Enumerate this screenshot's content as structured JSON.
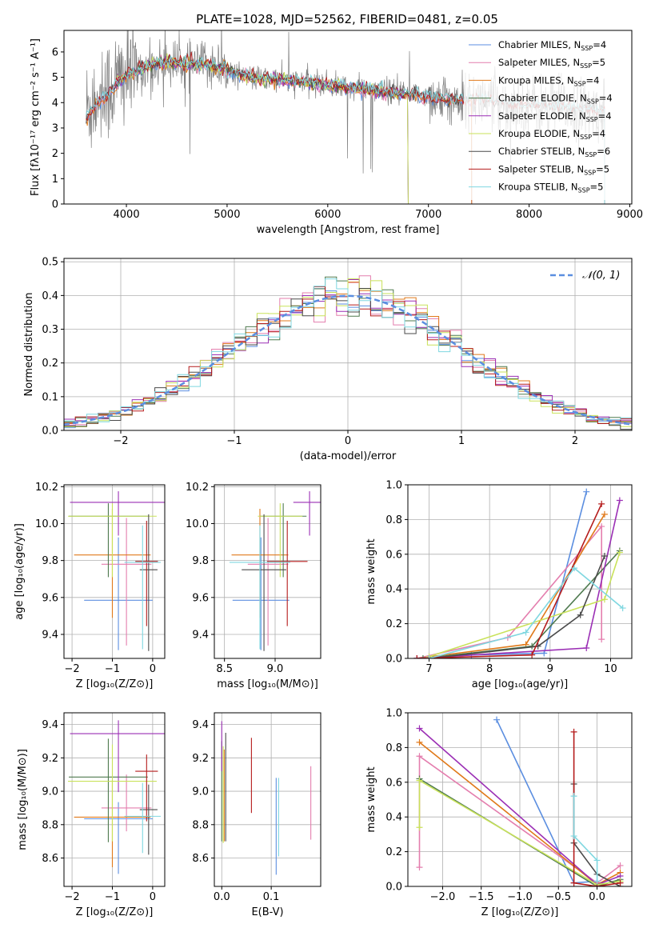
{
  "colors": {
    "Chabrier MILES": "#5b8ee0",
    "Salpeter MILES": "#e47eae",
    "Kroupa MILES": "#e07a1b",
    "Chabrier ELODIE": "#4f7a4f",
    "Salpeter ELODIE": "#9b2fb5",
    "Kroupa ELODIE": "#c9e25a",
    "Chabrier STELIB": "#4a4a4a",
    "Salpeter STELIB": "#b51c1c",
    "Kroupa STELIB": "#7fd7e0",
    "observed": "#808080"
  },
  "chart_data": [
    {
      "id": "spectrum",
      "type": "line",
      "title": "PLATE=1028, MJD=52562, FIBERID=0481, z=0.05",
      "xlabel": "wavelength [Angstrom, rest frame]",
      "ylabel": "Flux [fλ10⁻¹⁷ erg cm⁻² s⁻¹ A⁻¹]",
      "xlim": [
        3380,
        9020
      ],
      "ylim": [
        0,
        6.85
      ],
      "xticks": [
        "4000",
        "5000",
        "6000",
        "7000",
        "8000",
        "9000"
      ],
      "yticks": [
        "0",
        "1",
        "2",
        "3",
        "4",
        "5",
        "6"
      ],
      "legend": [
        "Chabrier MILES, N_SSP=4",
        "Salpeter MILES, N_SSP=5",
        "Kroupa MILES, N_SSP=4",
        "Chabrier ELODIE, N_SSP=4",
        "Salpeter ELODIE, N_SSP=4",
        "Kroupa ELODIE, N_SSP=4",
        "Chabrier STELIB, N_SSP=6",
        "Salpeter STELIB, N_SSP=5",
        "Kroupa STELIB, N_SSP=5"
      ],
      "legend_position": "top-right",
      "continuum": [
        [
          3600,
          3.7
        ],
        [
          3700,
          4.2
        ],
        [
          3800,
          4.4
        ],
        [
          3900,
          4.8
        ],
        [
          4000,
          5.1
        ],
        [
          4200,
          5.4
        ],
        [
          4400,
          5.6
        ],
        [
          4600,
          5.5
        ],
        [
          4800,
          5.5
        ],
        [
          5000,
          5.3
        ],
        [
          5200,
          5.0
        ],
        [
          5500,
          4.9
        ],
        [
          5800,
          4.8
        ],
        [
          6000,
          4.7
        ],
        [
          6300,
          4.55
        ],
        [
          6600,
          4.4
        ],
        [
          6900,
          4.3
        ],
        [
          7200,
          4.1
        ],
        [
          7500,
          4.1
        ],
        [
          7800,
          3.95
        ],
        [
          8100,
          3.85
        ],
        [
          8400,
          3.8
        ],
        [
          8700,
          3.65
        ]
      ],
      "model_ranges": {
        "MILES": [
          3600,
          7430
        ],
        "ELODIE": [
          3900,
          6800
        ],
        "STELIB": [
          3600,
          8750
        ]
      },
      "grid": false
    },
    {
      "id": "residuals",
      "type": "histogram",
      "xlabel": "(data-model)/error",
      "ylabel": "Normed distribution",
      "xlim": [
        -2.5,
        2.5
      ],
      "ylim": [
        0,
        0.51
      ],
      "xticks": [
        "−2",
        "−1",
        "0",
        "1",
        "2"
      ],
      "yticks": [
        "0.0",
        "0.1",
        "0.2",
        "0.3",
        "0.4",
        "0.5"
      ],
      "reference_label": "𝒩(0, 1)",
      "bin_width": 0.1,
      "grid": true
    },
    {
      "id": "age_vs_Z",
      "type": "errorbar",
      "xlabel": "Z [log₁₀(Z/Z⊙)]",
      "ylabel": "age  [log₁₀(age/yr)]",
      "xlim": [
        -2.2,
        0.3
      ],
      "ylim": [
        9.27,
        10.21
      ],
      "xticks": [
        "−2",
        "−1",
        "0"
      ],
      "yticks": [
        "9.4",
        "9.6",
        "9.8",
        "10.0",
        "10.2"
      ],
      "points": [
        {
          "model": "Chabrier MILES",
          "x": -0.85,
          "y": 9.585,
          "xerr": 0.85,
          "yerr": [
            0.27,
            0.34
          ]
        },
        {
          "model": "Salpeter MILES",
          "x": -0.65,
          "y": 9.78,
          "xerr": 0.62,
          "yerr": [
            0.44,
            0.25
          ]
        },
        {
          "model": "Kroupa MILES",
          "x": -1.0,
          "y": 9.83,
          "xerr": 0.95,
          "yerr": [
            0.34,
            0.25
          ]
        },
        {
          "model": "Chabrier ELODIE",
          "x": -1.1,
          "y": 10.04,
          "xerr": 0.98,
          "yerr": [
            0.33,
            0.07
          ]
        },
        {
          "model": "Salpeter ELODIE",
          "x": -0.85,
          "y": 10.115,
          "xerr": 1.2,
          "yerr": [
            0.18,
            0.06
          ]
        },
        {
          "model": "Kroupa ELODIE",
          "x": -1.0,
          "y": 10.04,
          "xerr": 1.1,
          "yerr": [
            0.33,
            0.07
          ]
        },
        {
          "model": "Chabrier STELIB",
          "x": -0.1,
          "y": 9.75,
          "xerr": 0.22,
          "yerr": [
            0.44,
            0.3
          ]
        },
        {
          "model": "Salpeter STELIB",
          "x": -0.15,
          "y": 9.795,
          "xerr": 0.28,
          "yerr": [
            0.35,
            0.22
          ]
        },
        {
          "model": "Kroupa STELIB",
          "x": -0.25,
          "y": 9.79,
          "xerr": 0.45,
          "yerr": [
            0.47,
            0.2
          ]
        }
      ],
      "grid": true
    },
    {
      "id": "age_vs_mass",
      "type": "errorbar",
      "xlabel": "mass [log₁₀(M/M⊙)]",
      "ylabel": "",
      "xlim": [
        8.4,
        9.45
      ],
      "ylim": [
        9.27,
        10.21
      ],
      "xticks": [
        "8.5",
        "9.0"
      ],
      "yticks": [
        "9.4",
        "9.6",
        "9.8",
        "10.0",
        "10.2"
      ],
      "points": [
        {
          "model": "Chabrier MILES",
          "x": 8.86,
          "y": 9.585,
          "xerr": 0.28,
          "yerr": [
            0.27,
            0.34
          ]
        },
        {
          "model": "Salpeter MILES",
          "x": 8.93,
          "y": 9.78,
          "xerr": 0.2,
          "yerr": [
            0.44,
            0.25
          ]
        },
        {
          "model": "Kroupa MILES",
          "x": 8.85,
          "y": 9.83,
          "xerr": 0.28,
          "yerr": [
            0.34,
            0.25
          ]
        },
        {
          "model": "Chabrier ELODIE",
          "x": 9.08,
          "y": 10.04,
          "xerr": 0.23,
          "yerr": [
            0.33,
            0.07
          ]
        },
        {
          "model": "Salpeter ELODIE",
          "x": 9.34,
          "y": 10.115,
          "xerr": 0.16,
          "yerr": [
            0.18,
            0.06
          ]
        },
        {
          "model": "Kroupa ELODIE",
          "x": 9.05,
          "y": 10.04,
          "xerr": 0.22,
          "yerr": [
            0.33,
            0.07
          ]
        },
        {
          "model": "Chabrier STELIB",
          "x": 8.89,
          "y": 9.75,
          "xerr": 0.22,
          "yerr": [
            0.44,
            0.3
          ]
        },
        {
          "model": "Salpeter STELIB",
          "x": 9.12,
          "y": 9.795,
          "xerr": 0.2,
          "yerr": [
            0.35,
            0.22
          ]
        },
        {
          "model": "Kroupa STELIB",
          "x": 8.85,
          "y": 9.79,
          "xerr": 0.3,
          "yerr": [
            0.47,
            0.2
          ]
        }
      ],
      "grid": true
    },
    {
      "id": "weight_vs_age",
      "type": "line",
      "xlabel": "age  [log₁₀(age/yr)]",
      "ylabel": "mass weight",
      "xlim": [
        6.65,
        10.35
      ],
      "ylim": [
        0,
        1.0
      ],
      "xticks": [
        "7",
        "8",
        "9",
        "10"
      ],
      "yticks": [
        "0.0",
        "0.2",
        "0.4",
        "0.6",
        "0.8",
        "1.0"
      ],
      "series": [
        {
          "model": "Chabrier MILES",
          "points": [
            [
              6.8,
              0.0
            ],
            [
              7.7,
              0.02
            ],
            [
              8.9,
              0.03
            ],
            [
              9.6,
              0.96
            ]
          ]
        },
        {
          "model": "Salpeter MILES",
          "points": [
            [
              6.8,
              0.0
            ],
            [
              8.3,
              0.12
            ],
            [
              9.85,
              0.76
            ],
            [
              9.85,
              0.11
            ]
          ]
        },
        {
          "model": "Kroupa MILES",
          "points": [
            [
              6.8,
              0.0
            ],
            [
              8.6,
              0.08
            ],
            [
              9.9,
              0.83
            ]
          ]
        },
        {
          "model": "Chabrier ELODIE",
          "points": [
            [
              6.9,
              0.0
            ],
            [
              8.7,
              0.07
            ],
            [
              10.15,
              0.62
            ]
          ]
        },
        {
          "model": "Salpeter ELODIE",
          "points": [
            [
              6.8,
              0.0
            ],
            [
              9.6,
              0.06
            ],
            [
              10.15,
              0.91
            ]
          ]
        },
        {
          "model": "Kroupa ELODIE",
          "points": [
            [
              7.0,
              0.01
            ],
            [
              9.9,
              0.34
            ],
            [
              10.15,
              0.61
            ]
          ]
        },
        {
          "model": "Chabrier STELIB",
          "points": [
            [
              7.0,
              0.0
            ],
            [
              8.8,
              0.07
            ],
            [
              9.5,
              0.25
            ],
            [
              9.9,
              0.59
            ]
          ]
        },
        {
          "model": "Salpeter STELIB",
          "points": [
            [
              6.8,
              0.0
            ],
            [
              8.7,
              0.02
            ],
            [
              9.85,
              0.89
            ]
          ]
        },
        {
          "model": "Kroupa STELIB",
          "points": [
            [
              7.0,
              0.0
            ],
            [
              8.6,
              0.15
            ],
            [
              9.4,
              0.52
            ],
            [
              10.2,
              0.29
            ]
          ]
        }
      ],
      "grid": true
    },
    {
      "id": "mass_vs_Z",
      "type": "errorbar",
      "xlabel": "Z [log₁₀(Z/Z⊙)]",
      "ylabel": "mass [log₁₀(M/M⊙)]",
      "xlim": [
        -2.2,
        0.3
      ],
      "ylim": [
        8.43,
        9.47
      ],
      "xticks": [
        "−2",
        "−1",
        "0"
      ],
      "yticks": [
        "8.6",
        "8.8",
        "9.0",
        "9.2",
        "9.4"
      ],
      "points": [
        {
          "model": "Chabrier MILES",
          "x": -0.85,
          "y": 8.835,
          "xerr": 0.85,
          "yerr": [
            0.33,
            0.1
          ]
        },
        {
          "model": "Salpeter MILES",
          "x": -0.65,
          "y": 8.9,
          "xerr": 0.62,
          "yerr": [
            0.14,
            0.2
          ]
        },
        {
          "model": "Kroupa MILES",
          "x": -1.0,
          "y": 8.845,
          "xerr": 0.95,
          "yerr": [
            0.3,
            0.22
          ]
        },
        {
          "model": "Chabrier ELODIE",
          "x": -1.1,
          "y": 9.085,
          "xerr": 0.98,
          "yerr": [
            0.39,
            0.23
          ]
        },
        {
          "model": "Salpeter ELODIE",
          "x": -0.85,
          "y": 9.345,
          "xerr": 1.2,
          "yerr": [
            0.35,
            0.08
          ]
        },
        {
          "model": "Kroupa ELODIE",
          "x": -1.0,
          "y": 9.06,
          "xerr": 1.1,
          "yerr": [
            0.36,
            0.22
          ]
        },
        {
          "model": "Chabrier STELIB",
          "x": -0.1,
          "y": 8.89,
          "xerr": 0.22,
          "yerr": [
            0.27,
            0.15
          ]
        },
        {
          "model": "Salpeter STELIB",
          "x": -0.15,
          "y": 9.12,
          "xerr": 0.28,
          "yerr": [
            0.3,
            0.1
          ]
        },
        {
          "model": "Kroupa STELIB",
          "x": -0.25,
          "y": 8.85,
          "xerr": 0.45,
          "yerr": [
            0.22,
            0.2
          ]
        }
      ],
      "grid": true
    },
    {
      "id": "mass_vs_ebv",
      "type": "errorbar",
      "xlabel": "E(B-V)",
      "ylabel": "",
      "xlim": [
        -0.015,
        0.2
      ],
      "ylim": [
        8.43,
        9.47
      ],
      "xticks": [
        "0.0",
        "0.1"
      ],
      "yticks": [
        "8.6",
        "8.8",
        "9.0",
        "9.2",
        "9.4"
      ],
      "points": [
        {
          "model": "Chabrier MILES",
          "x": 0.11,
          "y": 8.8,
          "xerr": 0,
          "yerr": [
            0.3,
            0.28
          ]
        },
        {
          "model": "Salpeter MILES",
          "x": 0.18,
          "y": 8.93,
          "xerr": 0,
          "yerr": [
            0.22,
            0.22
          ]
        },
        {
          "model": "Kroupa MILES",
          "x": 0.005,
          "y": 8.95,
          "xerr": 0,
          "yerr": [
            0.25,
            0.3
          ]
        },
        {
          "model": "Chabrier ELODIE",
          "x": 0.0,
          "y": 9.0,
          "xerr": 0,
          "yerr": [
            0.3,
            0.3
          ]
        },
        {
          "model": "Salpeter ELODIE",
          "x": 0.0,
          "y": 9.3,
          "xerr": 0,
          "yerr": [
            0.18,
            0.12
          ]
        },
        {
          "model": "Kroupa ELODIE",
          "x": 0.003,
          "y": 8.97,
          "xerr": 0,
          "yerr": [
            0.28,
            0.3
          ]
        },
        {
          "model": "Chabrier STELIB",
          "x": 0.008,
          "y": 9.0,
          "xerr": 0,
          "yerr": [
            0.3,
            0.35
          ]
        },
        {
          "model": "Salpeter STELIB",
          "x": 0.06,
          "y": 9.1,
          "xerr": 0,
          "yerr": [
            0.23,
            0.22
          ]
        },
        {
          "model": "Kroupa STELIB",
          "x": 0.115,
          "y": 8.85,
          "xerr": 0,
          "yerr": [
            0.24,
            0.23
          ]
        }
      ],
      "grid": true
    },
    {
      "id": "weight_vs_Z",
      "type": "line",
      "xlabel": "Z [log₁₀(Z/Z⊙)]",
      "ylabel": "mass weight",
      "xlim": [
        -2.45,
        0.45
      ],
      "ylim": [
        0,
        1.0
      ],
      "xticks": [
        "−2.0",
        "−1.5",
        "−1.0",
        "−0.5",
        "0.0"
      ],
      "yticks": [
        "0.0",
        "0.2",
        "0.4",
        "0.6",
        "0.8",
        "1.0"
      ],
      "series": [
        {
          "model": "Chabrier MILES",
          "points": [
            [
              -1.3,
              0.96
            ],
            [
              -0.3,
              0.02
            ],
            [
              0.0,
              0.03
            ]
          ]
        },
        {
          "model": "Salpeter MILES",
          "points": [
            [
              -2.3,
              0.11
            ],
            [
              -2.3,
              0.75
            ],
            [
              0.0,
              0.02
            ],
            [
              0.3,
              0.12
            ]
          ]
        },
        {
          "model": "Kroupa MILES",
          "points": [
            [
              -2.3,
              0.83
            ],
            [
              0.0,
              0.01
            ],
            [
              0.3,
              0.08
            ]
          ]
        },
        {
          "model": "Chabrier ELODIE",
          "points": [
            [
              -2.3,
              0.62
            ],
            [
              0.0,
              0.0
            ],
            [
              0.3,
              0.04
            ]
          ]
        },
        {
          "model": "Salpeter ELODIE",
          "points": [
            [
              -2.3,
              0.91
            ],
            [
              0.0,
              0.01
            ],
            [
              0.3,
              0.06
            ]
          ]
        },
        {
          "model": "Kroupa ELODIE",
          "points": [
            [
              -2.3,
              0.34
            ],
            [
              -2.3,
              0.61
            ],
            [
              0.0,
              0.01
            ],
            [
              0.3,
              0.03
            ]
          ]
        },
        {
          "model": "Chabrier STELIB",
          "points": [
            [
              -0.3,
              0.59
            ],
            [
              -0.3,
              0.25
            ],
            [
              0.0,
              0.07
            ],
            [
              0.3,
              0.0
            ]
          ]
        },
        {
          "model": "Salpeter STELIB",
          "points": [
            [
              -0.3,
              0.89
            ],
            [
              -0.3,
              0.02
            ],
            [
              0.0,
              0.0
            ],
            [
              0.3,
              0.02
            ]
          ]
        },
        {
          "model": "Kroupa STELIB",
          "points": [
            [
              -0.3,
              0.52
            ],
            [
              -0.3,
              0.29
            ],
            [
              0.0,
              0.15
            ],
            [
              0.0,
              0.03
            ]
          ]
        }
      ],
      "grid": true
    }
  ]
}
